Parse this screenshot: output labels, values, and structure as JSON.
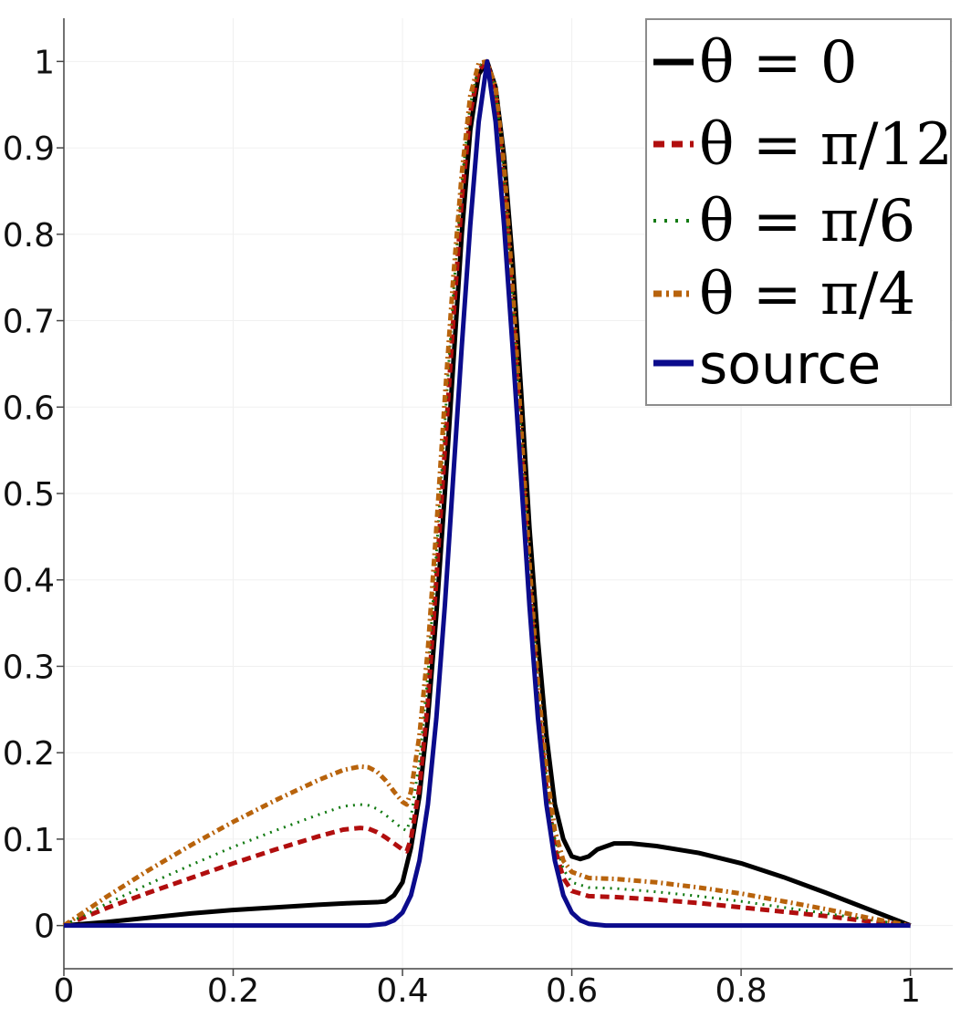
{
  "chart_data": {
    "type": "line",
    "title": "",
    "xlabel": "",
    "ylabel": "",
    "xlim": [
      0,
      1.05
    ],
    "ylim": [
      -0.05,
      1.05
    ],
    "xticks": [
      "0",
      "0.2",
      "0.4",
      "0.6",
      "0.8",
      "1"
    ],
    "yticks": [
      "0",
      "0.1",
      "0.2",
      "0.3",
      "0.4",
      "0.5",
      "0.6",
      "0.7",
      "0.8",
      "0.9",
      "1"
    ],
    "grid": true,
    "legend_position": "top-right",
    "series": [
      {
        "name": "θ = 0",
        "color": "#000000",
        "style": "solid",
        "points": [
          [
            0,
            0
          ],
          [
            0.05,
            0.004
          ],
          [
            0.1,
            0.009
          ],
          [
            0.15,
            0.014
          ],
          [
            0.2,
            0.018
          ],
          [
            0.25,
            0.021
          ],
          [
            0.3,
            0.024
          ],
          [
            0.34,
            0.026
          ],
          [
            0.37,
            0.027
          ],
          [
            0.38,
            0.028
          ],
          [
            0.39,
            0.035
          ],
          [
            0.4,
            0.05
          ],
          [
            0.41,
            0.09
          ],
          [
            0.42,
            0.15
          ],
          [
            0.43,
            0.24
          ],
          [
            0.44,
            0.36
          ],
          [
            0.45,
            0.5
          ],
          [
            0.46,
            0.65
          ],
          [
            0.47,
            0.8
          ],
          [
            0.48,
            0.92
          ],
          [
            0.49,
            0.985
          ],
          [
            0.5,
            1.0
          ],
          [
            0.51,
            0.97
          ],
          [
            0.52,
            0.89
          ],
          [
            0.53,
            0.77
          ],
          [
            0.54,
            0.62
          ],
          [
            0.55,
            0.46
          ],
          [
            0.56,
            0.33
          ],
          [
            0.57,
            0.22
          ],
          [
            0.58,
            0.14
          ],
          [
            0.59,
            0.1
          ],
          [
            0.6,
            0.08
          ],
          [
            0.61,
            0.077
          ],
          [
            0.62,
            0.08
          ],
          [
            0.63,
            0.088
          ],
          [
            0.65,
            0.095
          ],
          [
            0.67,
            0.095
          ],
          [
            0.7,
            0.092
          ],
          [
            0.75,
            0.084
          ],
          [
            0.8,
            0.072
          ],
          [
            0.85,
            0.056
          ],
          [
            0.9,
            0.038
          ],
          [
            0.95,
            0.019
          ],
          [
            1.0,
            0.0
          ]
        ]
      },
      {
        "name": "θ = π/12",
        "color": "#b10e0e",
        "style": "dashed",
        "points": [
          [
            0,
            0
          ],
          [
            0.05,
            0.02
          ],
          [
            0.1,
            0.038
          ],
          [
            0.15,
            0.055
          ],
          [
            0.2,
            0.072
          ],
          [
            0.25,
            0.088
          ],
          [
            0.3,
            0.103
          ],
          [
            0.33,
            0.111
          ],
          [
            0.35,
            0.113
          ],
          [
            0.36,
            0.112
          ],
          [
            0.37,
            0.108
          ],
          [
            0.38,
            0.102
          ],
          [
            0.39,
            0.095
          ],
          [
            0.4,
            0.088
          ],
          [
            0.405,
            0.086
          ],
          [
            0.41,
            0.1
          ],
          [
            0.42,
            0.16
          ],
          [
            0.43,
            0.26
          ],
          [
            0.44,
            0.4
          ],
          [
            0.45,
            0.55
          ],
          [
            0.46,
            0.7
          ],
          [
            0.47,
            0.84
          ],
          [
            0.48,
            0.94
          ],
          [
            0.49,
            0.99
          ],
          [
            0.5,
            1.0
          ],
          [
            0.51,
            0.96
          ],
          [
            0.52,
            0.86
          ],
          [
            0.53,
            0.72
          ],
          [
            0.54,
            0.56
          ],
          [
            0.55,
            0.4
          ],
          [
            0.56,
            0.26
          ],
          [
            0.57,
            0.16
          ],
          [
            0.58,
            0.09
          ],
          [
            0.59,
            0.055
          ],
          [
            0.6,
            0.04
          ],
          [
            0.62,
            0.034
          ],
          [
            0.65,
            0.033
          ],
          [
            0.7,
            0.03
          ],
          [
            0.75,
            0.026
          ],
          [
            0.8,
            0.021
          ],
          [
            0.85,
            0.016
          ],
          [
            0.9,
            0.011
          ],
          [
            0.95,
            0.005
          ],
          [
            1.0,
            0.0
          ]
        ]
      },
      {
        "name": "θ = π/6",
        "color": "#127a12",
        "style": "dotted",
        "points": [
          [
            0,
            0
          ],
          [
            0.05,
            0.025
          ],
          [
            0.1,
            0.048
          ],
          [
            0.15,
            0.07
          ],
          [
            0.2,
            0.091
          ],
          [
            0.25,
            0.11
          ],
          [
            0.3,
            0.128
          ],
          [
            0.33,
            0.138
          ],
          [
            0.35,
            0.14
          ],
          [
            0.36,
            0.139
          ],
          [
            0.37,
            0.135
          ],
          [
            0.38,
            0.128
          ],
          [
            0.39,
            0.12
          ],
          [
            0.4,
            0.112
          ],
          [
            0.405,
            0.11
          ],
          [
            0.41,
            0.125
          ],
          [
            0.42,
            0.19
          ],
          [
            0.43,
            0.29
          ],
          [
            0.44,
            0.43
          ],
          [
            0.45,
            0.58
          ],
          [
            0.46,
            0.73
          ],
          [
            0.47,
            0.86
          ],
          [
            0.48,
            0.95
          ],
          [
            0.49,
            0.995
          ],
          [
            0.5,
            1.0
          ],
          [
            0.51,
            0.97
          ],
          [
            0.52,
            0.87
          ],
          [
            0.53,
            0.73
          ],
          [
            0.54,
            0.57
          ],
          [
            0.55,
            0.41
          ],
          [
            0.56,
            0.27
          ],
          [
            0.57,
            0.17
          ],
          [
            0.58,
            0.1
          ],
          [
            0.59,
            0.065
          ],
          [
            0.6,
            0.05
          ],
          [
            0.62,
            0.044
          ],
          [
            0.65,
            0.043
          ],
          [
            0.7,
            0.039
          ],
          [
            0.75,
            0.034
          ],
          [
            0.8,
            0.028
          ],
          [
            0.85,
            0.021
          ],
          [
            0.9,
            0.014
          ],
          [
            0.95,
            0.007
          ],
          [
            1.0,
            0.0
          ]
        ]
      },
      {
        "name": "θ = π/4",
        "color": "#b8630c",
        "style": "dashdot",
        "points": [
          [
            0,
            0
          ],
          [
            0.05,
            0.033
          ],
          [
            0.1,
            0.064
          ],
          [
            0.15,
            0.093
          ],
          [
            0.2,
            0.12
          ],
          [
            0.25,
            0.145
          ],
          [
            0.3,
            0.168
          ],
          [
            0.33,
            0.18
          ],
          [
            0.35,
            0.184
          ],
          [
            0.36,
            0.183
          ],
          [
            0.37,
            0.178
          ],
          [
            0.38,
            0.168
          ],
          [
            0.39,
            0.155
          ],
          [
            0.4,
            0.143
          ],
          [
            0.405,
            0.14
          ],
          [
            0.41,
            0.155
          ],
          [
            0.42,
            0.22
          ],
          [
            0.43,
            0.32
          ],
          [
            0.44,
            0.46
          ],
          [
            0.45,
            0.61
          ],
          [
            0.46,
            0.75
          ],
          [
            0.47,
            0.87
          ],
          [
            0.48,
            0.96
          ],
          [
            0.49,
            0.998
          ],
          [
            0.5,
            1.0
          ],
          [
            0.51,
            0.97
          ],
          [
            0.52,
            0.88
          ],
          [
            0.53,
            0.74
          ],
          [
            0.54,
            0.58
          ],
          [
            0.55,
            0.42
          ],
          [
            0.56,
            0.28
          ],
          [
            0.57,
            0.18
          ],
          [
            0.58,
            0.11
          ],
          [
            0.59,
            0.075
          ],
          [
            0.6,
            0.062
          ],
          [
            0.62,
            0.055
          ],
          [
            0.65,
            0.054
          ],
          [
            0.7,
            0.05
          ],
          [
            0.75,
            0.044
          ],
          [
            0.8,
            0.037
          ],
          [
            0.85,
            0.028
          ],
          [
            0.9,
            0.019
          ],
          [
            0.95,
            0.009
          ],
          [
            1.0,
            0.0
          ]
        ]
      },
      {
        "name": "source",
        "color": "#0b0b8c",
        "style": "solid",
        "points": [
          [
            0,
            0
          ],
          [
            0.1,
            0
          ],
          [
            0.2,
            0
          ],
          [
            0.3,
            0
          ],
          [
            0.36,
            0
          ],
          [
            0.38,
            0.002
          ],
          [
            0.39,
            0.006
          ],
          [
            0.4,
            0.015
          ],
          [
            0.41,
            0.035
          ],
          [
            0.42,
            0.075
          ],
          [
            0.43,
            0.14
          ],
          [
            0.44,
            0.24
          ],
          [
            0.45,
            0.37
          ],
          [
            0.46,
            0.52
          ],
          [
            0.47,
            0.67
          ],
          [
            0.48,
            0.81
          ],
          [
            0.49,
            0.93
          ],
          [
            0.5,
            1.0
          ],
          [
            0.51,
            0.93
          ],
          [
            0.52,
            0.81
          ],
          [
            0.53,
            0.67
          ],
          [
            0.54,
            0.52
          ],
          [
            0.55,
            0.37
          ],
          [
            0.56,
            0.24
          ],
          [
            0.57,
            0.14
          ],
          [
            0.58,
            0.075
          ],
          [
            0.59,
            0.035
          ],
          [
            0.6,
            0.015
          ],
          [
            0.61,
            0.006
          ],
          [
            0.62,
            0.002
          ],
          [
            0.64,
            0
          ],
          [
            0.7,
            0
          ],
          [
            0.8,
            0
          ],
          [
            0.9,
            0
          ],
          [
            1.0,
            0
          ]
        ]
      }
    ]
  },
  "legend": {
    "items": [
      {
        "name": "θ = 0",
        "text": "θ = 0",
        "color": "#000000",
        "style": "solid"
      },
      {
        "name": "θ = π/12",
        "text": "θ = π/12",
        "color": "#b10e0e",
        "style": "dashed"
      },
      {
        "name": "θ = π/6",
        "text": "θ = π/6",
        "color": "#127a12",
        "style": "dotted"
      },
      {
        "name": "θ = π/4",
        "text": "θ = π/4",
        "color": "#b8630c",
        "style": "dashdot"
      },
      {
        "name": "source",
        "text": "source",
        "color": "#0b0b8c",
        "style": "solid"
      }
    ]
  }
}
